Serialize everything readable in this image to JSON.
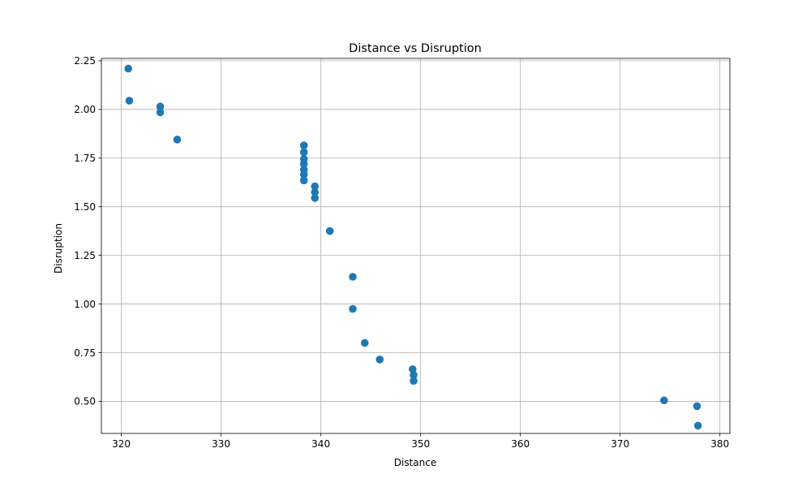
{
  "chart_data": {
    "type": "scatter",
    "title": "Distance vs Disruption",
    "xlabel": "Distance",
    "ylabel": "Disruption",
    "xlim": [
      318,
      381
    ],
    "ylim": [
      0.335,
      2.262
    ],
    "xticks": [
      320,
      330,
      340,
      350,
      360,
      370,
      380
    ],
    "xtick_labels": [
      "320",
      "330",
      "340",
      "350",
      "360",
      "370",
      "380"
    ],
    "yticks": [
      0.5,
      0.75,
      1.0,
      1.25,
      1.5,
      1.75,
      2.0,
      2.25
    ],
    "ytick_labels": [
      "0.50",
      "0.75",
      "1.00",
      "1.25",
      "1.50",
      "1.75",
      "2.00",
      "2.25"
    ],
    "grid": true,
    "legend": false,
    "marker_color": "#1f77b4",
    "series": [
      {
        "x": [
          320.7,
          320.8,
          323.9,
          323.9,
          325.6,
          338.3,
          338.3,
          338.3,
          338.3,
          338.3,
          338.3,
          338.3,
          339.4,
          339.4,
          339.4,
          340.9,
          343.2,
          343.2,
          344.4,
          345.9,
          349.2,
          349.3,
          349.3,
          374.4,
          377.7,
          377.8
        ],
        "y": [
          2.21,
          2.045,
          2.015,
          1.985,
          1.845,
          1.815,
          1.78,
          1.745,
          1.72,
          1.69,
          1.665,
          1.635,
          1.605,
          1.575,
          1.545,
          1.375,
          1.14,
          0.975,
          0.8,
          0.715,
          0.665,
          0.635,
          0.605,
          0.505,
          0.475,
          0.375
        ]
      }
    ]
  }
}
